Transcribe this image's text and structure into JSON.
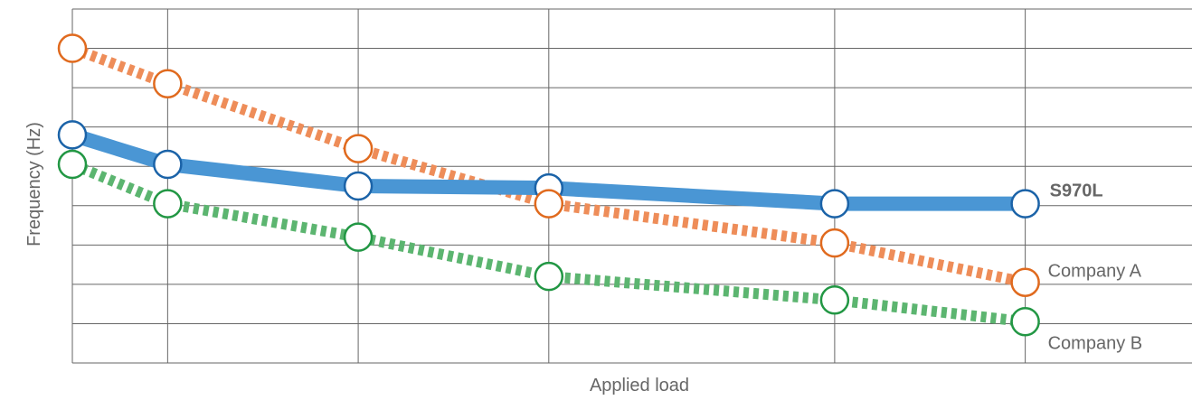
{
  "chart_data": {
    "type": "line",
    "xlabel": "Applied load",
    "ylabel": "Frequency (Hz)",
    "x": [
      0,
      1,
      3,
      5,
      8,
      10
    ],
    "xlim": [
      0,
      11.75
    ],
    "ylim": [
      0,
      9
    ],
    "grid": true,
    "series": [
      {
        "name": "S970L",
        "color": "#4a96d4",
        "marker_color": "#1b63a8",
        "style": "solid",
        "values": [
          5.8,
          5.05,
          4.5,
          4.45,
          4.05,
          4.05
        ]
      },
      {
        "name": "Company A",
        "color": "#ee8d59",
        "marker_color": "#e06a1e",
        "style": "dashed",
        "values": [
          8.0,
          7.1,
          5.45,
          4.05,
          3.05,
          2.05
        ]
      },
      {
        "name": "Company B",
        "color": "#5cb570",
        "marker_color": "#229744",
        "style": "dashed",
        "values": [
          5.05,
          4.05,
          3.2,
          2.2,
          1.6,
          1.05
        ]
      }
    ]
  }
}
